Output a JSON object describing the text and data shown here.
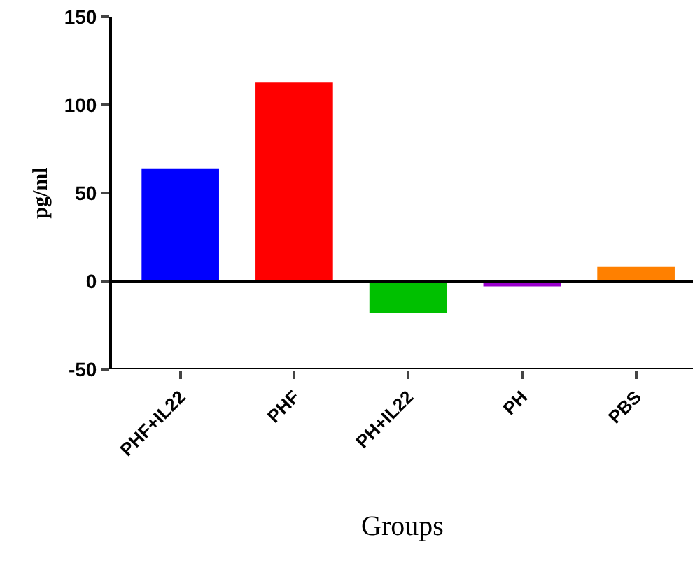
{
  "chart_data": {
    "type": "bar",
    "xlabel": "Groups",
    "ylabel": "pg/ml",
    "categories": [
      "PHF+IL22",
      "PHF",
      "PH+IL22",
      "PH",
      "PBS"
    ],
    "values": [
      64,
      113,
      -18,
      -3,
      8
    ],
    "colors": [
      "#0000ff",
      "#ff0000",
      "#00c000",
      "#9900cc",
      "#ff8000"
    ],
    "ylim": [
      -50,
      150
    ],
    "yticks": [
      -50,
      0,
      50,
      100,
      150
    ],
    "ref_lines": [
      {
        "axis": "y",
        "value": 0,
        "color": "#000000"
      }
    ]
  }
}
